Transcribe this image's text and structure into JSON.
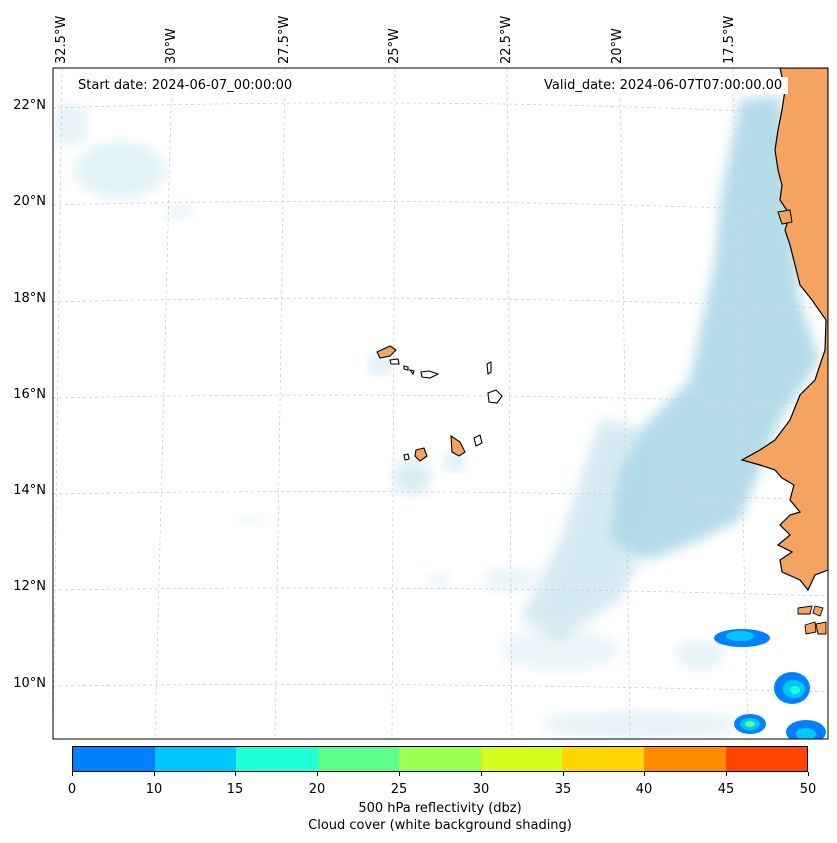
{
  "header": {
    "start_date": "Start date: 2024-06-07_00:00:00",
    "valid_date": "Valid_date: 2024-06-07T07:00:00.00"
  },
  "axes": {
    "longitude_labels": [
      "32.5°W",
      "30°W",
      "27.5°W",
      "25°W",
      "22.5°W",
      "20°W",
      "17.5°W"
    ],
    "latitude_labels": [
      "22°N",
      "20°N",
      "18°N",
      "16°N",
      "14°N",
      "12°N",
      "10°N"
    ]
  },
  "colorbar": {
    "label_line1": "500 hPa reflectivity (dbz)",
    "label_line2": "Cloud cover (white background shading)",
    "ticks": [
      "0",
      "10",
      "15",
      "20",
      "25",
      "30",
      "35",
      "40",
      "45",
      "50"
    ],
    "colors": [
      "#0080ff",
      "#00c8ff",
      "#1effd8",
      "#5cff8a",
      "#9aff50",
      "#d4ff1e",
      "#ffd700",
      "#ff8c00",
      "#ff4500"
    ]
  },
  "colors": {
    "land": "#f4a460",
    "cloud": "#add8e6",
    "grid": "#c8c8c8"
  }
}
